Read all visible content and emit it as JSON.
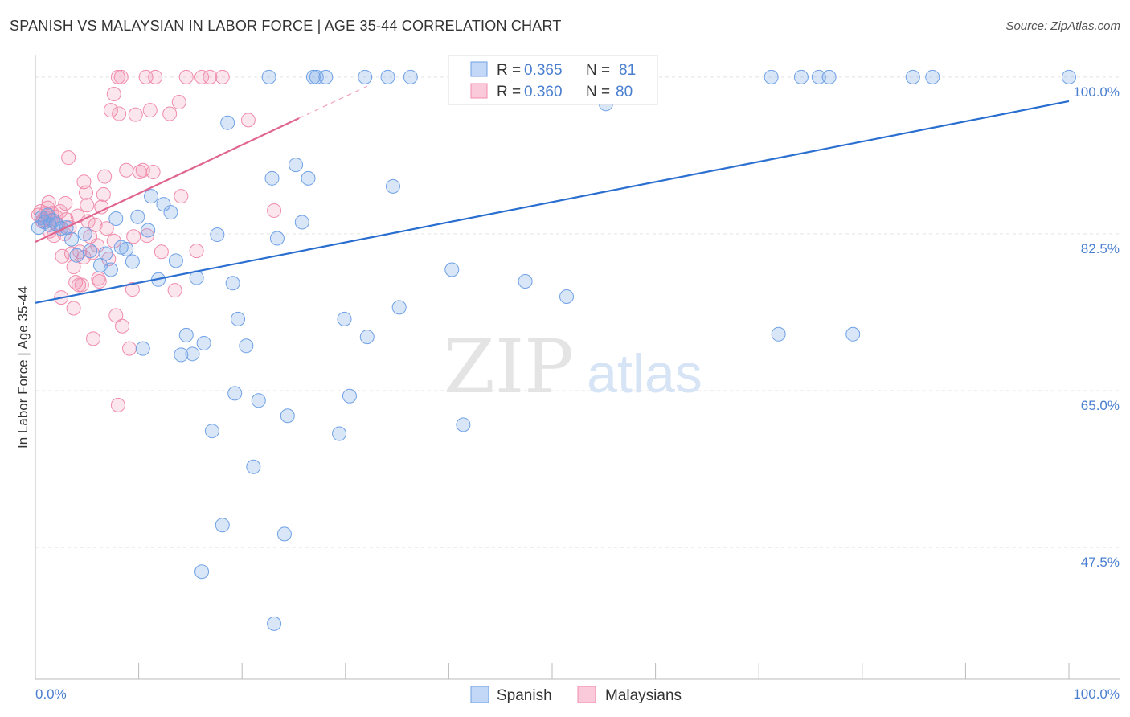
{
  "title": "SPANISH VS MALAYSIAN IN LABOR FORCE | AGE 35-44 CORRELATION CHART",
  "source": "Source: ZipAtlas.com",
  "watermark": {
    "zip": "ZIP",
    "atlas": "atlas"
  },
  "chart_data": {
    "type": "scatter",
    "ylabel": "In Labor Force | Age 35-44",
    "x_ticks": [
      "0.0%",
      "100.0%"
    ],
    "y_ticks": [
      {
        "value": 100.0,
        "label": "100.0%"
      },
      {
        "value": 82.5,
        "label": "82.5%"
      },
      {
        "value": 65.0,
        "label": "65.0%"
      },
      {
        "value": 47.5,
        "label": "47.5%"
      }
    ],
    "xlim": [
      0,
      100
    ],
    "ylim": [
      32.8,
      101.6
    ],
    "colors": {
      "spanish": "#6fa1e6",
      "malaysians": "#f08cab",
      "spanish_line": "#2a6fd0",
      "malaysians_line": "#e0668f"
    },
    "legend": {
      "r_label": "R =",
      "n_label": "N =",
      "entries": [
        {
          "name": "Spanish",
          "r": "0.365",
          "n": "81"
        },
        {
          "name": "Malaysians",
          "r": "0.360",
          "n": "80"
        }
      ]
    },
    "series": [
      {
        "name": "Spanish",
        "trend": {
          "x0": 0,
          "y0": 74.8,
          "x1": 100,
          "y1": 97.3
        },
        "points": [
          [
            0.3,
            83.2
          ],
          [
            0.6,
            84.3
          ],
          [
            0.9,
            83.8
          ],
          [
            1.2,
            84.6
          ],
          [
            1.4,
            83.5
          ],
          [
            1.7,
            84.0
          ],
          [
            2.0,
            83.6
          ],
          [
            2.5,
            83.1
          ],
          [
            3.0,
            83.2
          ],
          [
            3.5,
            81.9
          ],
          [
            4.0,
            80.1
          ],
          [
            4.8,
            82.5
          ],
          [
            5.3,
            80.6
          ],
          [
            6.3,
            79.0
          ],
          [
            6.8,
            80.3
          ],
          [
            7.3,
            78.5
          ],
          [
            7.8,
            84.2
          ],
          [
            8.3,
            81.0
          ],
          [
            8.8,
            80.8
          ],
          [
            9.4,
            79.4
          ],
          [
            9.9,
            84.4
          ],
          [
            10.4,
            69.7
          ],
          [
            10.9,
            82.9
          ],
          [
            11.2,
            86.7
          ],
          [
            11.9,
            77.4
          ],
          [
            12.4,
            85.8
          ],
          [
            13.1,
            84.9
          ],
          [
            13.6,
            79.5
          ],
          [
            14.1,
            69.0
          ],
          [
            14.6,
            71.2
          ],
          [
            15.2,
            69.1
          ],
          [
            15.6,
            77.6
          ],
          [
            17.1,
            60.5
          ],
          [
            17.6,
            82.4
          ],
          [
            18.6,
            94.9
          ],
          [
            18.1,
            50.0
          ],
          [
            16.3,
            70.3
          ],
          [
            16.1,
            44.8
          ],
          [
            19.1,
            77.0
          ],
          [
            19.3,
            64.7
          ],
          [
            19.6,
            73.0
          ],
          [
            20.4,
            70.0
          ],
          [
            21.1,
            56.5
          ],
          [
            21.6,
            63.9
          ],
          [
            22.6,
            100.0
          ],
          [
            22.9,
            88.7
          ],
          [
            23.1,
            39.0
          ],
          [
            23.4,
            82.0
          ],
          [
            24.1,
            49.0
          ],
          [
            24.4,
            62.2
          ],
          [
            25.2,
            90.2
          ],
          [
            25.8,
            83.8
          ],
          [
            26.4,
            88.7
          ],
          [
            26.9,
            100.0
          ],
          [
            27.2,
            100.0
          ],
          [
            28.1,
            100.0
          ],
          [
            29.4,
            60.2
          ],
          [
            29.9,
            73.0
          ],
          [
            30.4,
            64.4
          ],
          [
            31.9,
            100.0
          ],
          [
            32.1,
            71.0
          ],
          [
            34.1,
            100.0
          ],
          [
            34.6,
            87.8
          ],
          [
            35.2,
            74.3
          ],
          [
            36.3,
            100.0
          ],
          [
            40.3,
            78.5
          ],
          [
            41.4,
            61.2
          ],
          [
            47.4,
            77.2
          ],
          [
            51.4,
            75.5
          ],
          [
            52.3,
            100.0
          ],
          [
            55.2,
            97.0
          ],
          [
            55.7,
            100.0
          ],
          [
            71.2,
            100.0
          ],
          [
            71.9,
            71.3
          ],
          [
            74.1,
            100.0
          ],
          [
            75.8,
            100.0
          ],
          [
            76.8,
            100.0
          ],
          [
            79.1,
            71.3
          ],
          [
            84.9,
            100.0
          ],
          [
            86.8,
            100.0
          ],
          [
            100.0,
            100.0
          ]
        ]
      },
      {
        "name": "Malaysians",
        "trend": {
          "x0": 0,
          "y0": 81.6,
          "x1": 25.5,
          "y1": 95.4,
          "dash_to_x": 32.5
        },
        "points": [
          [
            0.3,
            84.6
          ],
          [
            0.5,
            85.0
          ],
          [
            0.8,
            84.1
          ],
          [
            1.0,
            84.3
          ],
          [
            1.2,
            85.4
          ],
          [
            1.4,
            82.8
          ],
          [
            1.6,
            84.8
          ],
          [
            1.8,
            82.3
          ],
          [
            2.0,
            84.4
          ],
          [
            2.2,
            83.4
          ],
          [
            2.4,
            85.0
          ],
          [
            2.6,
            80.0
          ],
          [
            2.8,
            82.5
          ],
          [
            3.0,
            84.1
          ],
          [
            3.3,
            83.2
          ],
          [
            3.5,
            80.3
          ],
          [
            3.7,
            78.8
          ],
          [
            3.9,
            77.1
          ],
          [
            4.1,
            84.5
          ],
          [
            4.3,
            80.5
          ],
          [
            4.5,
            76.8
          ],
          [
            4.7,
            79.9
          ],
          [
            4.9,
            87.1
          ],
          [
            5.1,
            83.9
          ],
          [
            5.3,
            82.2
          ],
          [
            5.5,
            80.4
          ],
          [
            5.8,
            83.5
          ],
          [
            6.0,
            81.2
          ],
          [
            6.2,
            77.2
          ],
          [
            6.4,
            85.5
          ],
          [
            6.6,
            86.9
          ],
          [
            6.9,
            83.1
          ],
          [
            7.1,
            79.7
          ],
          [
            7.3,
            96.3
          ],
          [
            7.6,
            81.7
          ],
          [
            7.8,
            73.4
          ],
          [
            8.1,
            95.9
          ],
          [
            8.4,
            72.2
          ],
          [
            8.8,
            89.6
          ],
          [
            9.1,
            69.7
          ],
          [
            9.4,
            76.3
          ],
          [
            9.7,
            95.8
          ],
          [
            10.1,
            89.4
          ],
          [
            10.4,
            89.6
          ],
          [
            10.8,
            82.3
          ],
          [
            11.1,
            96.3
          ],
          [
            11.4,
            89.4
          ],
          [
            11.6,
            100.0
          ],
          [
            12.2,
            80.5
          ],
          [
            13.0,
            95.9
          ],
          [
            13.5,
            76.2
          ],
          [
            13.9,
            97.2
          ],
          [
            14.1,
            86.7
          ],
          [
            14.6,
            100.0
          ],
          [
            15.6,
            80.6
          ],
          [
            16.1,
            100.0
          ],
          [
            16.9,
            100.0
          ],
          [
            18.1,
            100.0
          ],
          [
            20.6,
            95.2
          ],
          [
            23.1,
            85.1
          ],
          [
            8.0,
            100.0
          ],
          [
            8.3,
            100.0
          ],
          [
            7.6,
            98.1
          ],
          [
            2.5,
            75.4
          ],
          [
            3.7,
            74.2
          ],
          [
            5.0,
            85.7
          ],
          [
            6.7,
            88.9
          ],
          [
            5.6,
            70.8
          ],
          [
            4.7,
            88.3
          ],
          [
            3.2,
            91.0
          ],
          [
            8.0,
            63.4
          ],
          [
            1.0,
            84.8
          ],
          [
            1.3,
            86.0
          ],
          [
            1.5,
            84.0
          ],
          [
            2.9,
            85.9
          ],
          [
            0.7,
            83.9
          ],
          [
            4.2,
            76.8
          ],
          [
            6.1,
            77.5
          ],
          [
            9.5,
            82.2
          ],
          [
            10.7,
            100.0
          ]
        ]
      }
    ]
  }
}
